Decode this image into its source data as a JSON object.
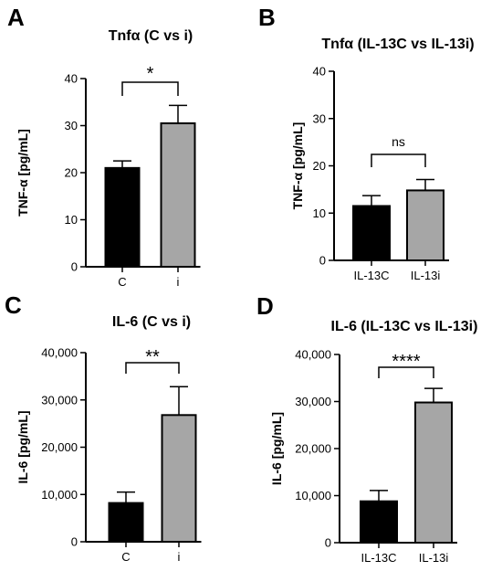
{
  "chart_data": [
    {
      "panel": "A",
      "type": "bar",
      "title": "Tnfα (C vs i)",
      "ylabel": "TNF-α [pg/mL]",
      "categories": [
        "C",
        "i"
      ],
      "values": [
        21,
        30.5
      ],
      "errors": [
        1.5,
        3.8
      ],
      "colors": [
        "#000000",
        "#a6a6a6"
      ],
      "ylim": [
        0,
        40
      ],
      "yticks": [
        0,
        10,
        20,
        30,
        40
      ],
      "ytick_labels": [
        "0",
        "10",
        "20",
        "30",
        "40"
      ],
      "significance": "*"
    },
    {
      "panel": "B",
      "type": "bar",
      "title": "Tnfα (IL-13C vs IL-13i)",
      "ylabel": "TNF-α [pg/mL]",
      "categories": [
        "IL-13C",
        "IL-13i"
      ],
      "values": [
        11.5,
        14.8
      ],
      "errors": [
        2.2,
        2.3
      ],
      "colors": [
        "#000000",
        "#a6a6a6"
      ],
      "ylim": [
        0,
        40
      ],
      "yticks": [
        0,
        10,
        20,
        30,
        40
      ],
      "ytick_labels": [
        "0",
        "10",
        "20",
        "30",
        "40"
      ],
      "significance": "ns"
    },
    {
      "panel": "C",
      "type": "bar",
      "title": "IL-6  (C vs i)",
      "ylabel": "IL-6 [pg/mL]",
      "categories": [
        "C",
        "i"
      ],
      "values": [
        8200,
        26800
      ],
      "errors": [
        2300,
        6000
      ],
      "colors": [
        "#000000",
        "#a6a6a6"
      ],
      "ylim": [
        0,
        40000
      ],
      "yticks": [
        0,
        10000,
        20000,
        30000,
        40000
      ],
      "ytick_labels": [
        "0",
        "10,000",
        "20,000",
        "30,000",
        "40,000"
      ],
      "significance": "**"
    },
    {
      "panel": "D",
      "type": "bar",
      "title": "IL-6  (IL-13C vs IL-13i)",
      "ylabel": "IL-6 [pg/mL]",
      "categories": [
        "IL-13C",
        "IL-13i"
      ],
      "values": [
        8800,
        29800
      ],
      "errors": [
        2300,
        3000
      ],
      "colors": [
        "#000000",
        "#a6a6a6"
      ],
      "ylim": [
        0,
        40000
      ],
      "yticks": [
        0,
        10000,
        20000,
        30000,
        40000
      ],
      "ytick_labels": [
        "0",
        "10,000",
        "20,000",
        "30,000",
        "40,000"
      ],
      "significance": "****"
    }
  ]
}
